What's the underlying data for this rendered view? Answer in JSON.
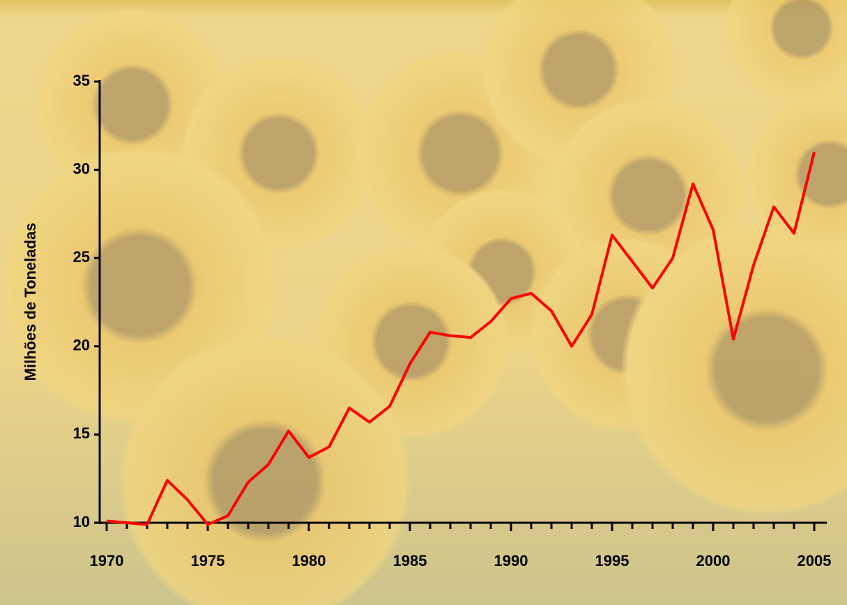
{
  "chart_data": {
    "type": "line",
    "y_label": "Milhões de Toneladas",
    "x": [
      1970,
      1971,
      1972,
      1973,
      1974,
      1975,
      1976,
      1977,
      1978,
      1979,
      1980,
      1981,
      1982,
      1983,
      1984,
      1985,
      1986,
      1987,
      1988,
      1989,
      1990,
      1991,
      1992,
      1993,
      1994,
      1995,
      1996,
      1997,
      1998,
      1999,
      2000,
      2001,
      2002,
      2003,
      2004,
      2005
    ],
    "series": [
      {
        "color": "#ff0000",
        "values": [
          10.1,
          10.0,
          9.9,
          12.4,
          11.3,
          9.9,
          10.4,
          12.3,
          13.3,
          15.2,
          13.7,
          14.3,
          16.5,
          15.7,
          16.6,
          19.0,
          20.8,
          20.6,
          20.5,
          21.4,
          22.7,
          23.0,
          22.0,
          20.0,
          21.8,
          26.3,
          24.8,
          23.3,
          25.0,
          29.2,
          26.6,
          20.4,
          24.6,
          27.9,
          26.4,
          31.0
        ]
      }
    ],
    "xlim": [
      1970,
      2005
    ],
    "xticks": [
      1970,
      1975,
      1980,
      1985,
      1990,
      1995,
      2000,
      2005
    ],
    "ylim": [
      10,
      35
    ],
    "yticks": [
      10,
      15,
      20,
      25,
      30,
      35
    ]
  }
}
